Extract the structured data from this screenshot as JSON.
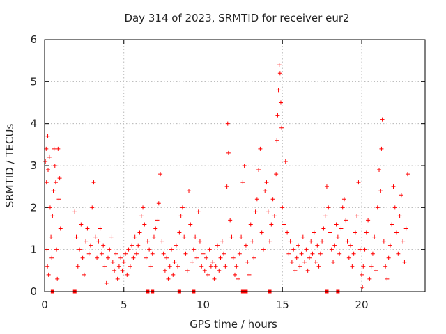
{
  "chart_data": {
    "type": "scatter",
    "title": "Day 314 of 2023, SRMTID for receiver eur2",
    "xlabel": "GPS time / hours",
    "ylabel": "SRMTID / TECUs",
    "xlim": [
      0,
      24
    ],
    "ylim": [
      0,
      6
    ],
    "xticks": [
      "0",
      "5",
      "10",
      "15",
      "20"
    ],
    "yticks": [
      "0",
      "1",
      "2",
      "3",
      "4",
      "5",
      "6"
    ],
    "grid": true,
    "marker": "+",
    "color": "#ff0000",
    "series": [
      {
        "name": "SRMTID",
        "note": "representative sample of the dense point cloud; values read approximately",
        "points": [
          [
            0.05,
            3.1
          ],
          [
            0.1,
            3.4
          ],
          [
            0.12,
            2.6
          ],
          [
            0.15,
            1.0
          ],
          [
            0.18,
            0.6
          ],
          [
            0.2,
            3.7
          ],
          [
            0.22,
            2.9
          ],
          [
            0.25,
            0.4
          ],
          [
            0.3,
            3.2
          ],
          [
            0.35,
            2.0
          ],
          [
            0.4,
            1.3
          ],
          [
            0.45,
            0.8
          ],
          [
            0.5,
            1.8
          ],
          [
            0.55,
            2.4
          ],
          [
            0.6,
            3.4
          ],
          [
            0.65,
            3.0
          ],
          [
            0.7,
            2.6
          ],
          [
            0.75,
            1.0
          ],
          [
            0.8,
            0.3
          ],
          [
            0.85,
            3.4
          ],
          [
            0.9,
            2.2
          ],
          [
            0.95,
            2.7
          ],
          [
            1.0,
            1.5
          ],
          [
            1.9,
            1.9
          ],
          [
            2.0,
            1.3
          ],
          [
            2.1,
            0.6
          ],
          [
            2.2,
            1.0
          ],
          [
            2.3,
            1.6
          ],
          [
            2.4,
            0.8
          ],
          [
            2.5,
            0.4
          ],
          [
            2.6,
            1.2
          ],
          [
            2.7,
            1.5
          ],
          [
            2.8,
            0.9
          ],
          [
            2.9,
            1.1
          ],
          [
            3.0,
            2.0
          ],
          [
            3.1,
            2.6
          ],
          [
            3.2,
            1.3
          ],
          [
            3.3,
            0.8
          ],
          [
            3.4,
            1.2
          ],
          [
            3.5,
            1.5
          ],
          [
            3.6,
            0.9
          ],
          [
            3.7,
            1.1
          ],
          [
            3.8,
            0.6
          ],
          [
            3.9,
            0.2
          ],
          [
            4.0,
            0.8
          ],
          [
            4.1,
            1.0
          ],
          [
            4.2,
            1.3
          ],
          [
            4.3,
            0.7
          ],
          [
            4.4,
            0.5
          ],
          [
            4.5,
            0.9
          ],
          [
            4.6,
            0.3
          ],
          [
            4.7,
            0.6
          ],
          [
            4.8,
            0.8
          ],
          [
            4.9,
            0.5
          ],
          [
            5.0,
            0.7
          ],
          [
            5.1,
            0.9
          ],
          [
            5.2,
            0.4
          ],
          [
            5.3,
            1.0
          ],
          [
            5.4,
            0.6
          ],
          [
            5.5,
            1.1
          ],
          [
            5.6,
            0.8
          ],
          [
            5.7,
            1.3
          ],
          [
            5.8,
            0.9
          ],
          [
            5.9,
            1.1
          ],
          [
            6.0,
            1.4
          ],
          [
            6.1,
            1.8
          ],
          [
            6.2,
            2.0
          ],
          [
            6.3,
            1.6
          ],
          [
            6.4,
            0.8
          ],
          [
            6.5,
            1.2
          ],
          [
            6.6,
            1.0
          ],
          [
            6.7,
            0.6
          ],
          [
            6.8,
            0.9
          ],
          [
            6.9,
            1.3
          ],
          [
            7.0,
            1.5
          ],
          [
            7.1,
            1.7
          ],
          [
            7.2,
            2.1
          ],
          [
            7.3,
            2.8
          ],
          [
            7.4,
            1.2
          ],
          [
            7.5,
            0.9
          ],
          [
            7.6,
            0.5
          ],
          [
            7.7,
            0.8
          ],
          [
            7.8,
            0.3
          ],
          [
            7.9,
            0.6
          ],
          [
            8.0,
            1.0
          ],
          [
            8.1,
            0.4
          ],
          [
            8.2,
            0.7
          ],
          [
            8.3,
            1.1
          ],
          [
            8.4,
            0.6
          ],
          [
            8.5,
            1.4
          ],
          [
            8.6,
            1.8
          ],
          [
            8.7,
            2.0
          ],
          [
            8.8,
            1.3
          ],
          [
            8.9,
            0.9
          ],
          [
            9.0,
            0.5
          ],
          [
            9.1,
            2.4
          ],
          [
            9.2,
            1.6
          ],
          [
            9.3,
            0.7
          ],
          [
            9.4,
            1.0
          ],
          [
            9.5,
            1.3
          ],
          [
            9.6,
            0.8
          ],
          [
            9.7,
            1.9
          ],
          [
            9.8,
            1.2
          ],
          [
            9.9,
            0.6
          ],
          [
            10.0,
            0.9
          ],
          [
            10.1,
            0.5
          ],
          [
            10.2,
            0.8
          ],
          [
            10.3,
            0.4
          ],
          [
            10.4,
            1.0
          ],
          [
            10.5,
            0.6
          ],
          [
            10.6,
            0.7
          ],
          [
            10.7,
            0.3
          ],
          [
            10.8,
            0.6
          ],
          [
            10.9,
            1.1
          ],
          [
            11.0,
            0.5
          ],
          [
            11.1,
            0.8
          ],
          [
            11.2,
            1.2
          ],
          [
            11.3,
            0.9
          ],
          [
            11.4,
            0.6
          ],
          [
            11.5,
            2.5
          ],
          [
            11.55,
            4.0
          ],
          [
            11.6,
            3.3
          ],
          [
            11.7,
            1.7
          ],
          [
            11.8,
            1.3
          ],
          [
            11.9,
            0.8
          ],
          [
            12.0,
            0.4
          ],
          [
            12.1,
            0.6
          ],
          [
            12.2,
            0.3
          ],
          [
            12.3,
            0.9
          ],
          [
            12.4,
            1.3
          ],
          [
            12.5,
            2.6
          ],
          [
            12.6,
            3.0
          ],
          [
            12.7,
            1.1
          ],
          [
            12.8,
            0.7
          ],
          [
            12.9,
            0.4
          ],
          [
            13.0,
            1.6
          ],
          [
            13.1,
            1.2
          ],
          [
            13.2,
            0.8
          ],
          [
            13.3,
            1.9
          ],
          [
            13.4,
            2.2
          ],
          [
            13.5,
            2.9
          ],
          [
            13.6,
            3.4
          ],
          [
            13.7,
            1.4
          ],
          [
            13.8,
            1.0
          ],
          [
            13.9,
            2.4
          ],
          [
            14.0,
            2.6
          ],
          [
            14.1,
            1.9
          ],
          [
            14.2,
            1.2
          ],
          [
            14.3,
            1.6
          ],
          [
            14.4,
            2.2
          ],
          [
            14.5,
            1.8
          ],
          [
            14.6,
            2.8
          ],
          [
            14.65,
            3.6
          ],
          [
            14.7,
            4.2
          ],
          [
            14.75,
            4.8
          ],
          [
            14.8,
            5.4
          ],
          [
            14.85,
            5.2
          ],
          [
            14.9,
            4.5
          ],
          [
            14.95,
            3.9
          ],
          [
            15.0,
            2.0
          ],
          [
            15.1,
            1.6
          ],
          [
            15.2,
            3.1
          ],
          [
            15.3,
            1.4
          ],
          [
            15.4,
            0.9
          ],
          [
            15.5,
            1.2
          ],
          [
            15.6,
            0.7
          ],
          [
            15.7,
            1.0
          ],
          [
            15.8,
            0.5
          ],
          [
            15.9,
            0.8
          ],
          [
            16.0,
            1.1
          ],
          [
            16.1,
            0.6
          ],
          [
            16.2,
            0.9
          ],
          [
            16.3,
            1.3
          ],
          [
            16.4,
            0.7
          ],
          [
            16.5,
            1.0
          ],
          [
            16.6,
            0.5
          ],
          [
            16.7,
            0.8
          ],
          [
            16.8,
            1.2
          ],
          [
            16.9,
            0.9
          ],
          [
            17.0,
            1.4
          ],
          [
            17.1,
            0.7
          ],
          [
            17.2,
            1.1
          ],
          [
            17.3,
            0.6
          ],
          [
            17.4,
            0.9
          ],
          [
            17.5,
            1.2
          ],
          [
            17.6,
            1.5
          ],
          [
            17.7,
            1.8
          ],
          [
            17.8,
            2.5
          ],
          [
            17.9,
            2.0
          ],
          [
            18.0,
            1.4
          ],
          [
            18.1,
            1.0
          ],
          [
            18.2,
            0.7
          ],
          [
            18.3,
            1.1
          ],
          [
            18.4,
            1.6
          ],
          [
            18.5,
            1.3
          ],
          [
            18.6,
            0.9
          ],
          [
            18.7,
            1.5
          ],
          [
            18.8,
            2.0
          ],
          [
            18.9,
            2.2
          ],
          [
            19.0,
            1.7
          ],
          [
            19.1,
            1.2
          ],
          [
            19.2,
            0.8
          ],
          [
            19.3,
            1.1
          ],
          [
            19.4,
            0.6
          ],
          [
            19.5,
            0.9
          ],
          [
            19.6,
            1.4
          ],
          [
            19.7,
            1.8
          ],
          [
            19.8,
            2.6
          ],
          [
            19.9,
            1.0
          ],
          [
            20.0,
            0.4
          ],
          [
            20.05,
            0.1
          ],
          [
            20.1,
            0.6
          ],
          [
            20.2,
            1.0
          ],
          [
            20.3,
            1.4
          ],
          [
            20.4,
            1.7
          ],
          [
            20.5,
            0.3
          ],
          [
            20.6,
            0.6
          ],
          [
            20.7,
            0.9
          ],
          [
            20.8,
            1.3
          ],
          [
            20.9,
            0.5
          ],
          [
            21.0,
            2.0
          ],
          [
            21.1,
            2.9
          ],
          [
            21.2,
            2.4
          ],
          [
            21.25,
            3.4
          ],
          [
            21.3,
            4.1
          ],
          [
            21.4,
            1.2
          ],
          [
            21.5,
            0.6
          ],
          [
            21.6,
            0.3
          ],
          [
            21.7,
            0.8
          ],
          [
            21.8,
            1.1
          ],
          [
            21.9,
            1.6
          ],
          [
            22.0,
            2.5
          ],
          [
            22.1,
            2.0
          ],
          [
            22.2,
            1.4
          ],
          [
            22.3,
            0.9
          ],
          [
            22.4,
            1.8
          ],
          [
            22.5,
            2.3
          ],
          [
            22.6,
            1.2
          ],
          [
            22.7,
            0.7
          ],
          [
            22.8,
            1.5
          ],
          [
            22.9,
            2.8
          ]
        ]
      }
    ],
    "gap_markers_x": [
      0.5,
      1.9,
      6.5,
      6.8,
      8.5,
      9.4,
      12.5,
      12.7,
      14.2,
      17.8,
      18.5
    ]
  }
}
